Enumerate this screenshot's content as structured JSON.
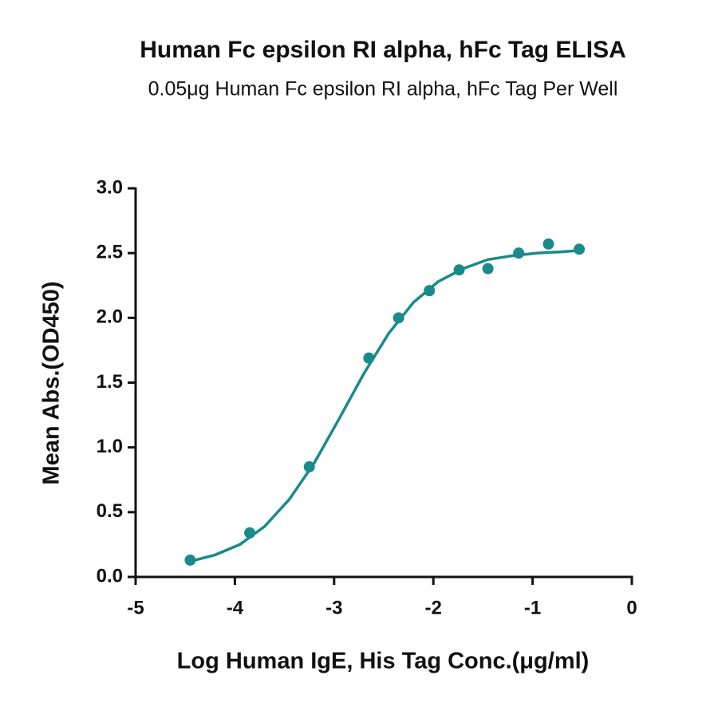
{
  "chart_data": {
    "type": "scatter",
    "title": "Human Fc epsilon RI alpha, hFc Tag ELISA",
    "subtitle": "0.05μg Human Fc epsilon RI alpha, hFc Tag Per Well",
    "x_label": "Log Human IgE, His Tag Conc.(μg/ml)",
    "y_label": "Mean Abs.(OD450)",
    "xlim": [
      -5,
      0
    ],
    "ylim": [
      0,
      3.0
    ],
    "xticks": [
      -5,
      -4,
      -3,
      -2,
      -1,
      0
    ],
    "yticks": [
      {
        "value": 0,
        "label": "0.0"
      },
      0.5,
      {
        "value": 1,
        "label": "1.0"
      },
      1.5,
      {
        "value": 2,
        "label": "2.0"
      },
      2.5,
      {
        "value": 3,
        "label": "3.0"
      }
    ],
    "color": "#1a8a8a",
    "x": [
      -4.45,
      -3.85,
      -3.25,
      -2.65,
      -2.35,
      -2.04,
      -1.74,
      -1.45,
      -1.14,
      -0.84,
      -0.53
    ],
    "values": [
      0.13,
      0.34,
      0.85,
      1.69,
      2.0,
      2.21,
      2.37,
      2.38,
      2.5,
      2.57,
      2.53
    ],
    "fit": {
      "x": [
        -4.45,
        -4.2,
        -3.95,
        -3.7,
        -3.45,
        -3.2,
        -2.95,
        -2.7,
        -2.45,
        -2.2,
        -1.95,
        -1.7,
        -1.45,
        -1.2,
        -0.95,
        -0.7,
        -0.53
      ],
      "values": [
        0.12,
        0.17,
        0.25,
        0.39,
        0.6,
        0.88,
        1.22,
        1.57,
        1.88,
        2.12,
        2.28,
        2.38,
        2.45,
        2.48,
        2.5,
        2.51,
        2.52
      ]
    }
  }
}
